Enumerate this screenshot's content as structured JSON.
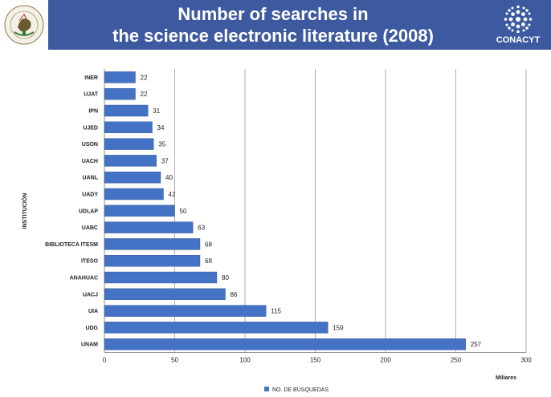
{
  "header": {
    "title_line1": "Number of searches in",
    "title_line2": "the science electronic literature (2008)",
    "logo_text": "CONACYT",
    "seal_text": "ESTADOS UNIDOS MEXICANOS",
    "band_color": "#3d5aa0"
  },
  "chart_data": {
    "type": "bar",
    "orientation": "horizontal",
    "title": "Number of searches in the science electronic literature (2008)",
    "xlabel": "Miliares",
    "ylabel": "INSTITUCIÓN",
    "xlim": [
      0,
      300
    ],
    "xticks": [
      0,
      50,
      100,
      150,
      200,
      250,
      300
    ],
    "grid": "vertical",
    "legend_position": "bottom",
    "bar_color": "#4472c4",
    "categories": [
      "INER",
      "UJAT",
      "IPN",
      "UJED",
      "USON",
      "UACH",
      "UANL",
      "UADY",
      "UDLAP",
      "UABC",
      "BIBLIOTECA ITESM",
      "ITESO",
      "ANAHUAC",
      "UACJ",
      "UIA",
      "UDG",
      "UNAM"
    ],
    "series": [
      {
        "name": "NO. DE BÚSQUEDAS",
        "values": [
          22,
          22,
          31,
          34,
          35,
          37,
          40,
          42,
          50,
          63,
          68,
          68,
          80,
          86,
          115,
          159,
          257
        ]
      }
    ]
  }
}
